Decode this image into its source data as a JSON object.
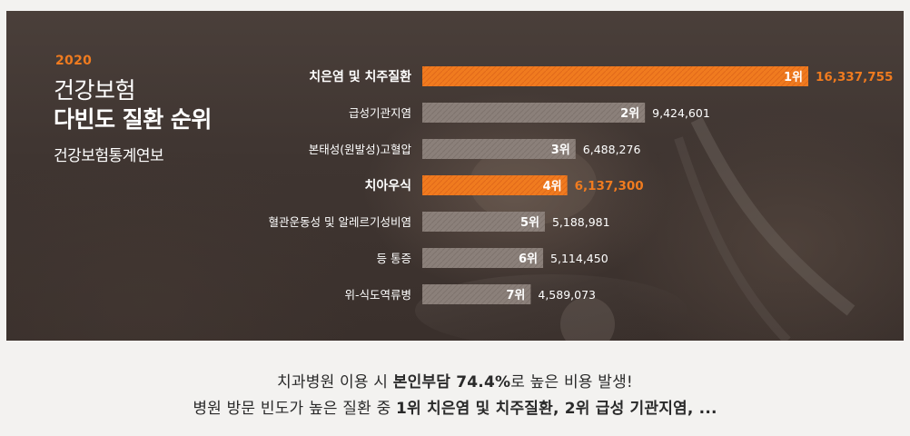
{
  "side": {
    "year": "2020",
    "title_line1": "건강보험",
    "title_line2": "다빈도 질환 순위",
    "source": "건강보험통계연보"
  },
  "colors": {
    "highlight": "#f07b1f",
    "bar": "#8b807a",
    "highlight_text": "#f07b1f",
    "value_text": "#ffffff"
  },
  "chart_data": {
    "type": "bar",
    "orientation": "horizontal",
    "categories": [
      "치은염 및 치주질환",
      "급성기관지염",
      "본태성(원발성)고혈압",
      "치아우식",
      "혈관운동성 및 알레르기성비염",
      "등 통증",
      "위-식도역류병"
    ],
    "values": [
      16337755,
      9424601,
      6488276,
      6137300,
      5188981,
      5114450,
      4589073
    ],
    "value_labels": [
      "16,337,755",
      "9,424,601",
      "6,488,276",
      "6,137,300",
      "5,188,981",
      "5,114,450",
      "4,589,073"
    ],
    "rank_labels": [
      "1위",
      "2위",
      "3위",
      "4위",
      "5위",
      "6위",
      "7위"
    ],
    "highlighted": [
      true,
      false,
      false,
      true,
      false,
      false,
      false
    ],
    "xlim": [
      0,
      16337755
    ],
    "grid": false,
    "legend": "none"
  },
  "caption": {
    "line1_a": "치과병원 이용 시 ",
    "line1_b": "본인부담 74.4%",
    "line1_c": "로 높은 비용 발생!",
    "line2_a": "병원 방문 빈도가 높은 질환 중 ",
    "line2_b": "1위 치은염 및 치주질환",
    "line2_c": ", ",
    "line2_d": "2위 급성 기관지염",
    "line2_e": ", ..."
  }
}
